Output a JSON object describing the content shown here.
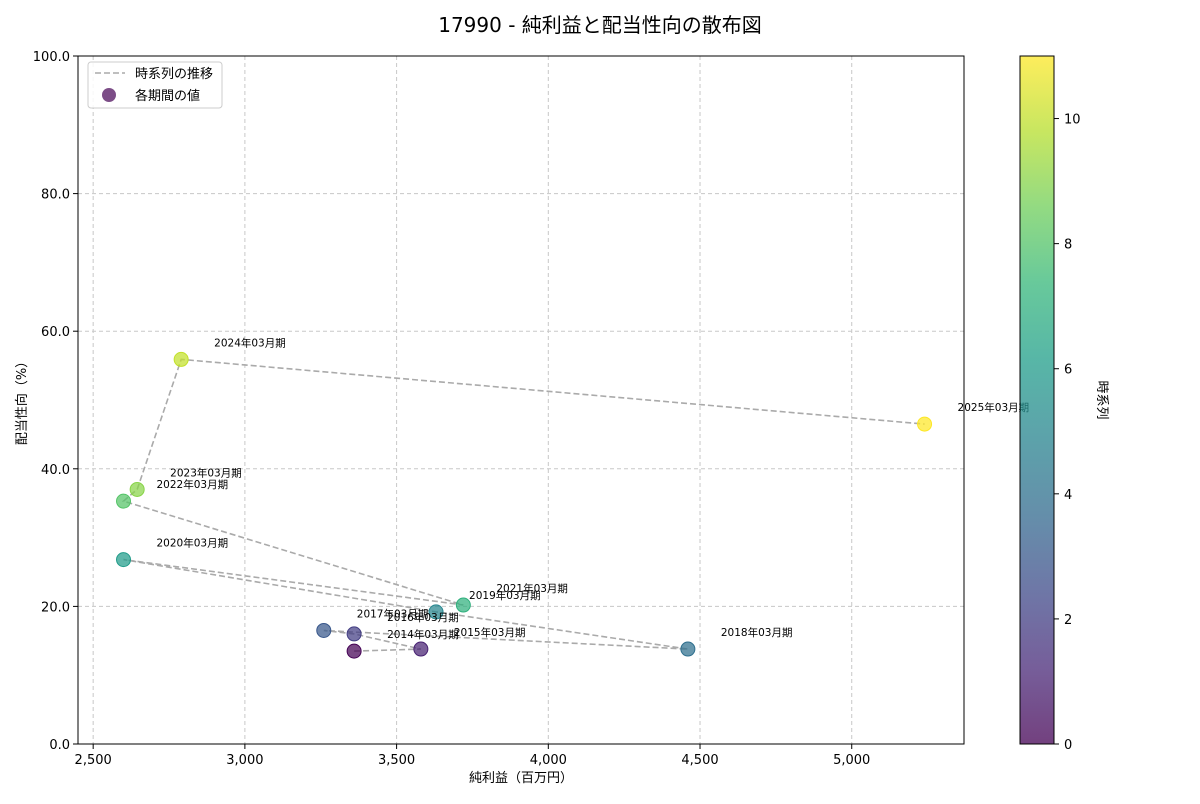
{
  "chart_data": {
    "type": "scatter",
    "title": "17990 - 純利益と配当性向の散布図",
    "xlabel": "純利益（百万円）",
    "ylabel": "配当性向（%）",
    "xlim": [
      2450,
      5370
    ],
    "ylim": [
      0,
      100
    ],
    "xticks": [
      2500,
      3000,
      3500,
      4000,
      4500,
      5000
    ],
    "xtick_labels": [
      "2,500",
      "3,000",
      "3,500",
      "4,000",
      "4,500",
      "5,000"
    ],
    "yticks": [
      0,
      20,
      40,
      60,
      80,
      100
    ],
    "ytick_labels": [
      "0.0",
      "20.0",
      "40.0",
      "60.0",
      "80.0",
      "100.0"
    ],
    "grid": true,
    "legend": {
      "position": "top-left",
      "line_label": "時系列の推移",
      "marker_label": "各期間の値"
    },
    "colorbar": {
      "label": "時系列",
      "min": 0,
      "max": 11,
      "ticks": [
        0,
        2,
        4,
        6,
        8,
        10
      ],
      "tick_labels": [
        "0",
        "2",
        "4",
        "6",
        "8",
        "10"
      ]
    },
    "points": [
      {
        "label": "2014年03月期",
        "x": 3360,
        "y": 13.5,
        "t": 0
      },
      {
        "label": "2015年03月期",
        "x": 3580,
        "y": 13.8,
        "t": 1
      },
      {
        "label": "2016年03月期",
        "x": 3360,
        "y": 16.0,
        "t": 2
      },
      {
        "label": "2017年03月期",
        "x": 3260,
        "y": 16.5,
        "t": 3
      },
      {
        "label": "2018年03月期",
        "x": 4460,
        "y": 13.8,
        "t": 4
      },
      {
        "label": "2019年03月期",
        "x": 3630,
        "y": 19.2,
        "t": 5
      },
      {
        "label": "2020年03月期",
        "x": 2600,
        "y": 26.8,
        "t": 6
      },
      {
        "label": "2021年03月期",
        "x": 3720,
        "y": 20.2,
        "t": 7
      },
      {
        "label": "2022年03月期",
        "x": 2600,
        "y": 35.3,
        "t": 8
      },
      {
        "label": "2023年03月期",
        "x": 2645,
        "y": 37.0,
        "t": 9
      },
      {
        "label": "2024年03月期",
        "x": 2790,
        "y": 55.9,
        "t": 10
      },
      {
        "label": "2025年03月期",
        "x": 5240,
        "y": 46.5,
        "t": 11
      }
    ],
    "colors": {
      "trend_line": "#aaaaaa",
      "grid": "#c8c8c8",
      "axis": "#000000",
      "viridis": [
        "#440154",
        "#482878",
        "#3e4989",
        "#31688e",
        "#26828e",
        "#1f9e89",
        "#35b779",
        "#6ece58",
        "#b5de2b",
        "#fde725"
      ]
    }
  }
}
